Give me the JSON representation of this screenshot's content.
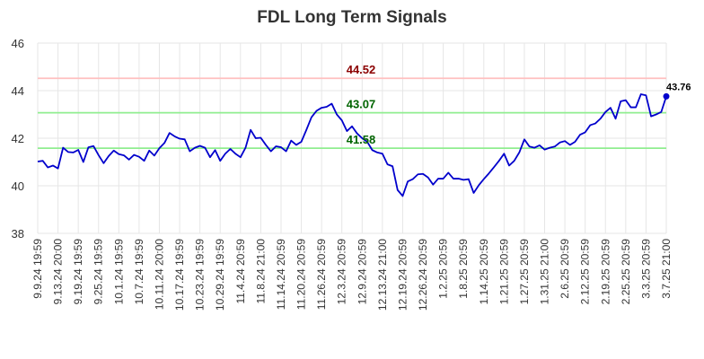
{
  "chart_data": {
    "type": "line",
    "title": "FDL Long Term Signals",
    "xlabel": "",
    "ylabel": "",
    "ylim": [
      38,
      46
    ],
    "y_ticks": [
      38,
      40,
      42,
      44,
      46
    ],
    "grid": true,
    "x_tick_labels": [
      "9.9.24 19:59",
      "9.13.24 20:00",
      "9.19.24 19:59",
      "9.25.24 19:59",
      "10.1.24 19:59",
      "10.7.24 19:59",
      "10.11.24 20:00",
      "10.17.24 19:59",
      "10.23.24 19:59",
      "10.29.24 19:59",
      "11.4.24 20:59",
      "11.8.24 21:00",
      "11.14.24 20:59",
      "11.20.24 20:59",
      "11.26.24 20:59",
      "12.3.24 20:59",
      "12.9.24 20:59",
      "12.13.24 21:00",
      "12.19.24 20:59",
      "12.26.24 20:59",
      "1.2.25 20:59",
      "1.8.25 20:59",
      "1.14.25 20:59",
      "1.21.25 20:59",
      "1.27.25 20:59",
      "1.31.25 21:00",
      "2.6.25 20:59",
      "2.12.25 20:59",
      "2.19.25 20:59",
      "2.25.25 20:59",
      "3.3.25 20:59",
      "3.7.25 21:00"
    ],
    "series": [
      {
        "color": "#0000cc",
        "values": [
          41.02,
          41.05,
          40.77,
          40.85,
          40.73,
          41.6,
          41.42,
          41.4,
          41.51,
          41.0,
          41.62,
          41.67,
          41.29,
          40.95,
          41.25,
          41.48,
          41.33,
          41.28,
          41.1,
          41.3,
          41.22,
          41.05,
          41.48,
          41.27,
          41.58,
          41.8,
          42.22,
          42.08,
          41.98,
          41.95,
          41.45,
          41.6,
          41.68,
          41.6,
          41.2,
          41.5,
          41.05,
          41.35,
          41.55,
          41.35,
          41.2,
          41.6,
          42.35,
          42.0,
          42.02,
          41.72,
          41.45,
          41.66,
          41.62,
          41.45,
          41.9,
          41.72,
          41.85,
          42.35,
          42.88,
          43.15,
          43.28,
          43.32,
          43.45,
          43.0,
          42.75,
          42.3,
          42.5,
          42.2,
          42.0,
          41.85,
          41.5,
          41.4,
          41.35,
          40.9,
          40.82,
          39.82,
          39.57,
          40.18,
          40.28,
          40.48,
          40.5,
          40.35,
          40.05,
          40.3,
          40.3,
          40.55,
          40.3,
          40.3,
          40.25,
          40.28,
          39.7,
          40.02,
          40.28,
          40.52,
          40.78,
          41.05,
          41.35,
          40.85,
          41.05,
          41.4,
          41.95,
          41.65,
          41.6,
          41.7,
          41.52,
          41.6,
          41.65,
          41.82,
          41.88,
          41.72,
          41.85,
          42.15,
          42.25,
          42.55,
          42.62,
          42.82,
          43.1,
          43.28,
          42.82,
          43.55,
          43.6,
          43.3,
          43.3,
          43.85,
          43.8,
          42.92,
          43.0,
          43.1,
          43.76
        ]
      }
    ],
    "reference_lines": [
      {
        "value": 44.52,
        "label": "44.52",
        "line_color": "#ffc0c0",
        "text_color": "#8b0000"
      },
      {
        "value": 43.07,
        "label": "43.07",
        "line_color": "#90ee90",
        "text_color": "#006400"
      },
      {
        "value": 41.58,
        "label": "41.58",
        "line_color": "#90ee90",
        "text_color": "#006400"
      }
    ],
    "last_value_label": "43.76"
  }
}
